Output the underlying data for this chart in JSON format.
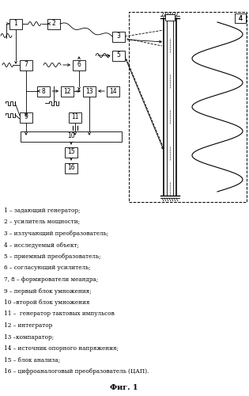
{
  "title": "Фиг. 1",
  "bg_color": "#ffffff",
  "legend_lines": [
    "1 – задающий генератор;",
    "2 – усилитель мощности;",
    "3 – излучающий преобразователь;",
    "4 – исследуемый объект;",
    "5 – приемный преобразователь;",
    "6 – согласующий усилитель;",
    "7, 8 – формирователи меандра;",
    "9 – первый блок умножения;",
    "10 –второй блок умножения",
    "11 –  генератор тактовых импульсов",
    "12 – интегратор",
    "13 –компаратор;",
    "14 – источник опорного напряжения;",
    "15 – блок анализа;",
    "16 – цифроаналоговый преобразователь (ЦАП)."
  ]
}
